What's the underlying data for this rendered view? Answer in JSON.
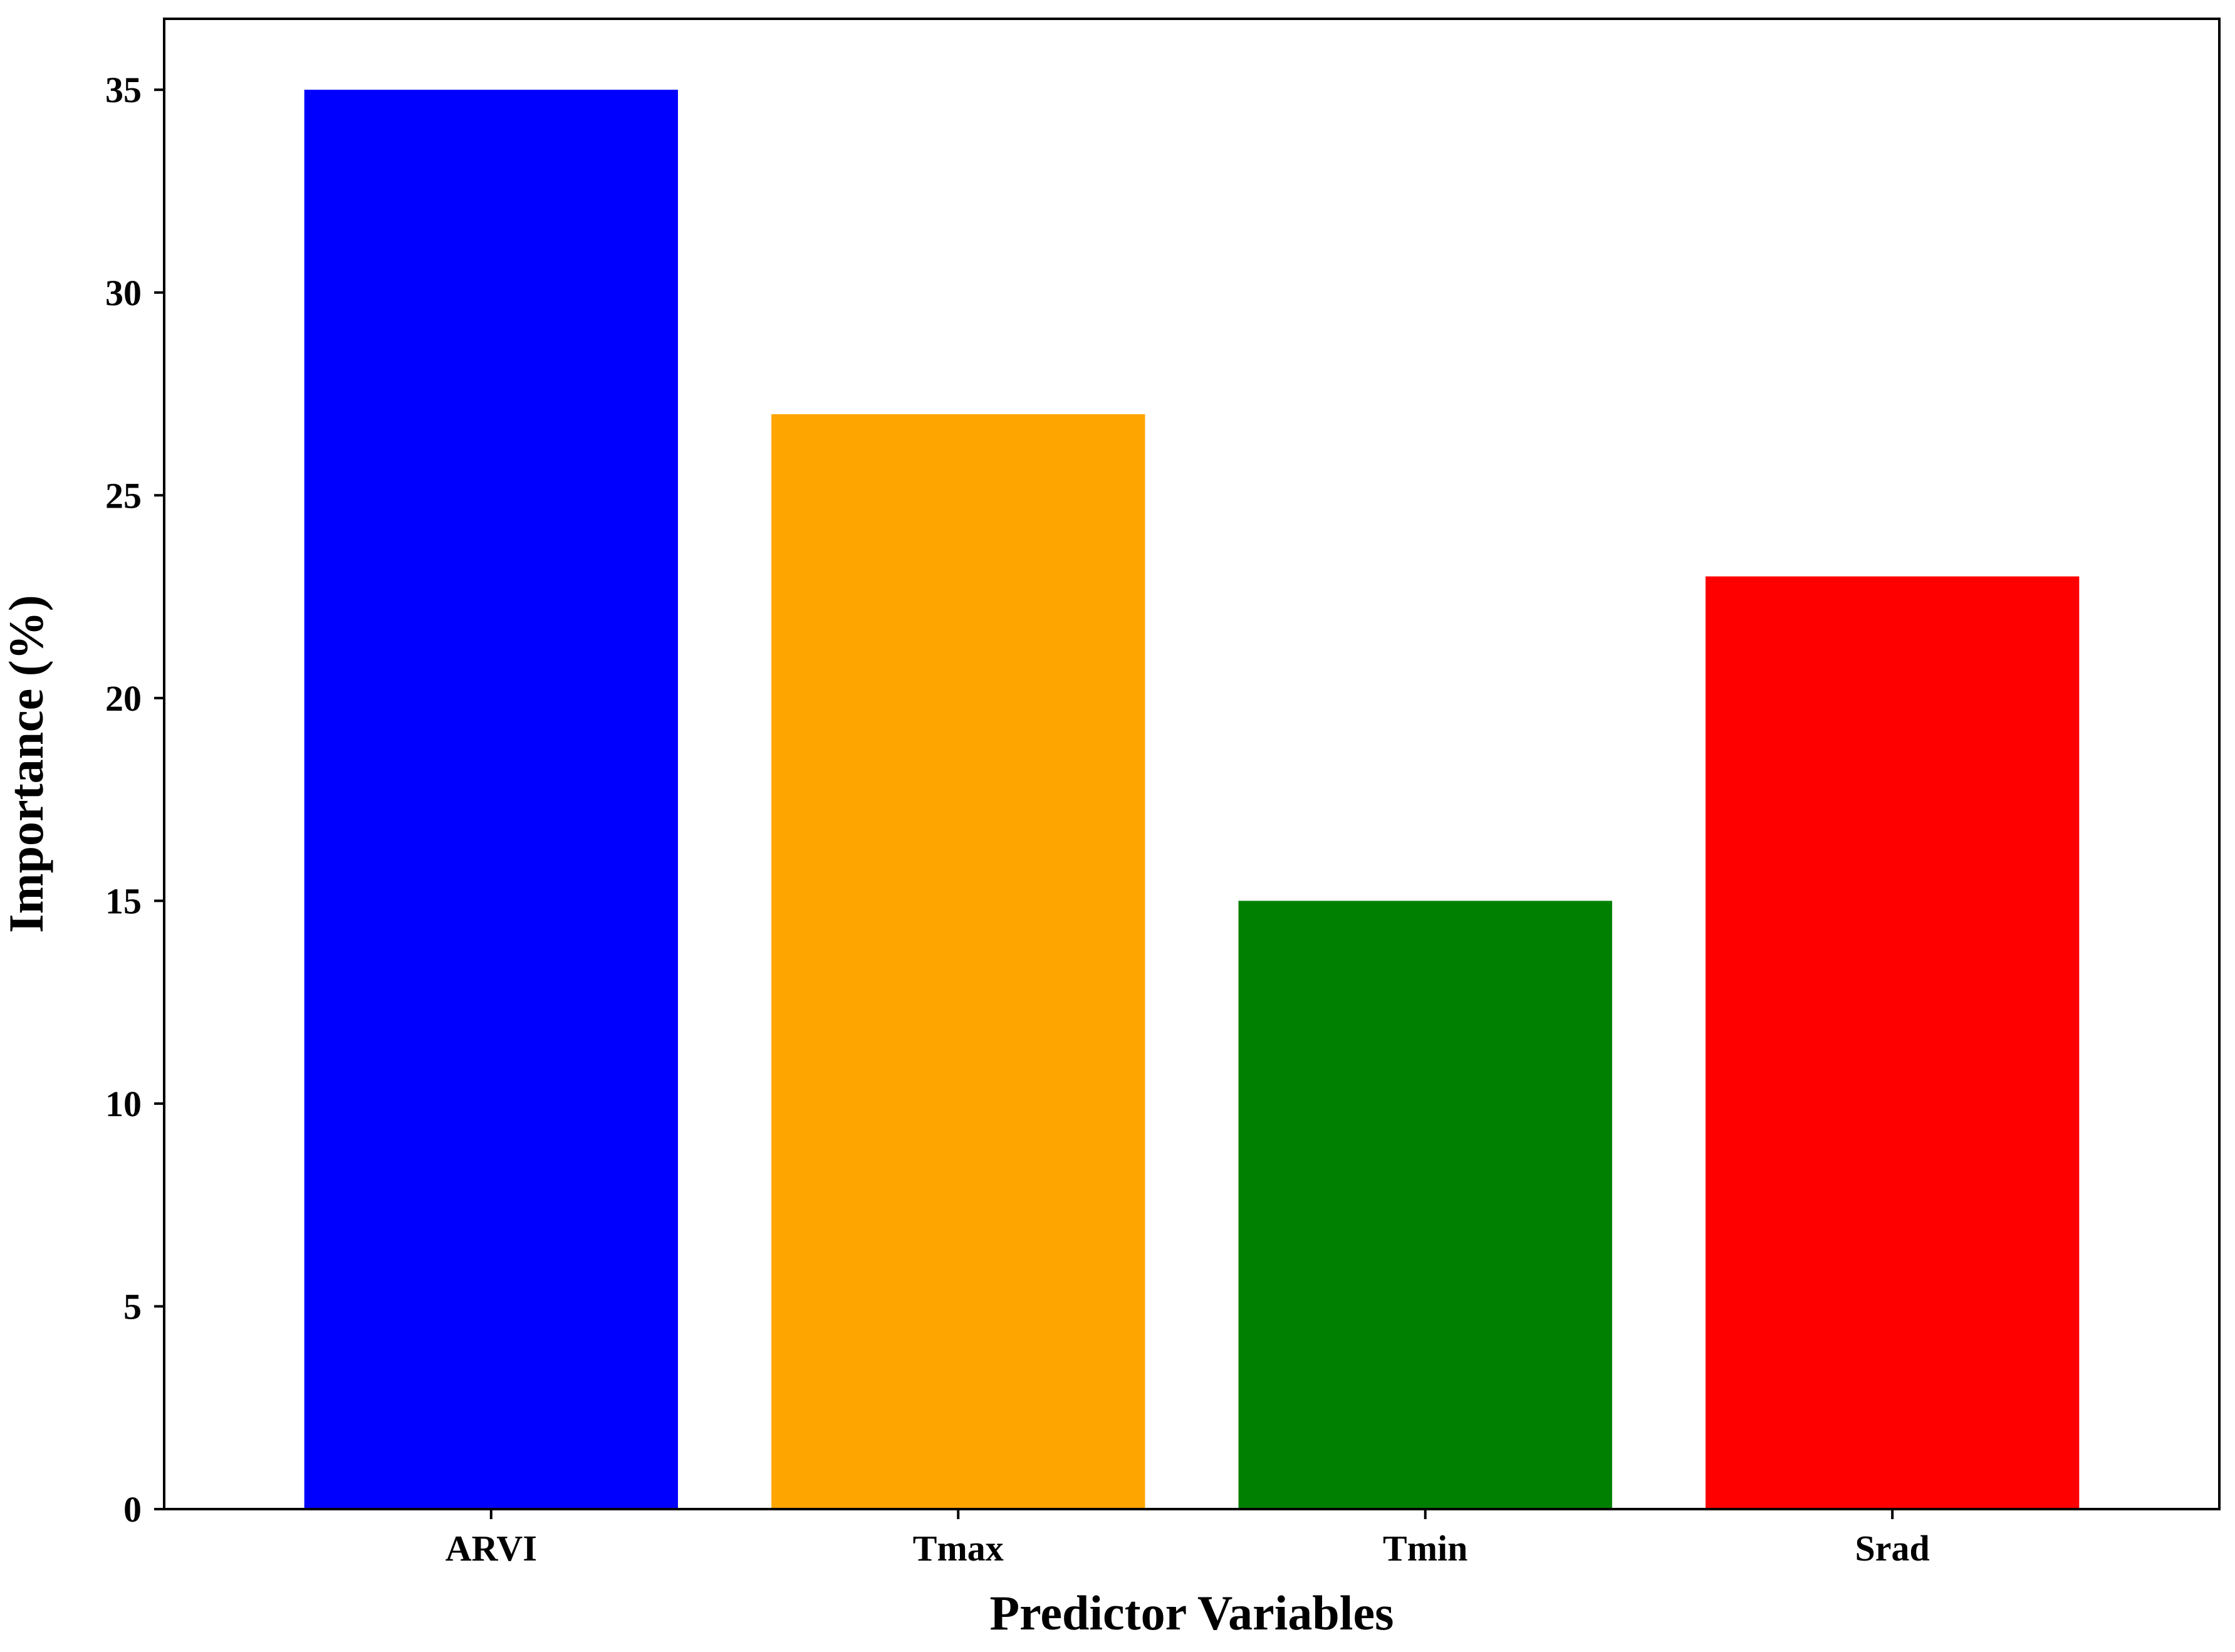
{
  "chart_data": {
    "type": "bar",
    "title": "",
    "xlabel": "Predictor Variables",
    "ylabel": "Importance (%)",
    "categories": [
      "ARVI",
      "Tmax",
      "Tmin",
      "Srad"
    ],
    "values": [
      35,
      27,
      15,
      23
    ],
    "colors": [
      "#0000ff",
      "#ffa500",
      "#008000",
      "#ff0000"
    ],
    "ylim": [
      0,
      36.75
    ],
    "yticks": [
      0,
      5,
      10,
      15,
      20,
      25,
      30,
      35
    ],
    "grid": false,
    "legend": "none"
  }
}
